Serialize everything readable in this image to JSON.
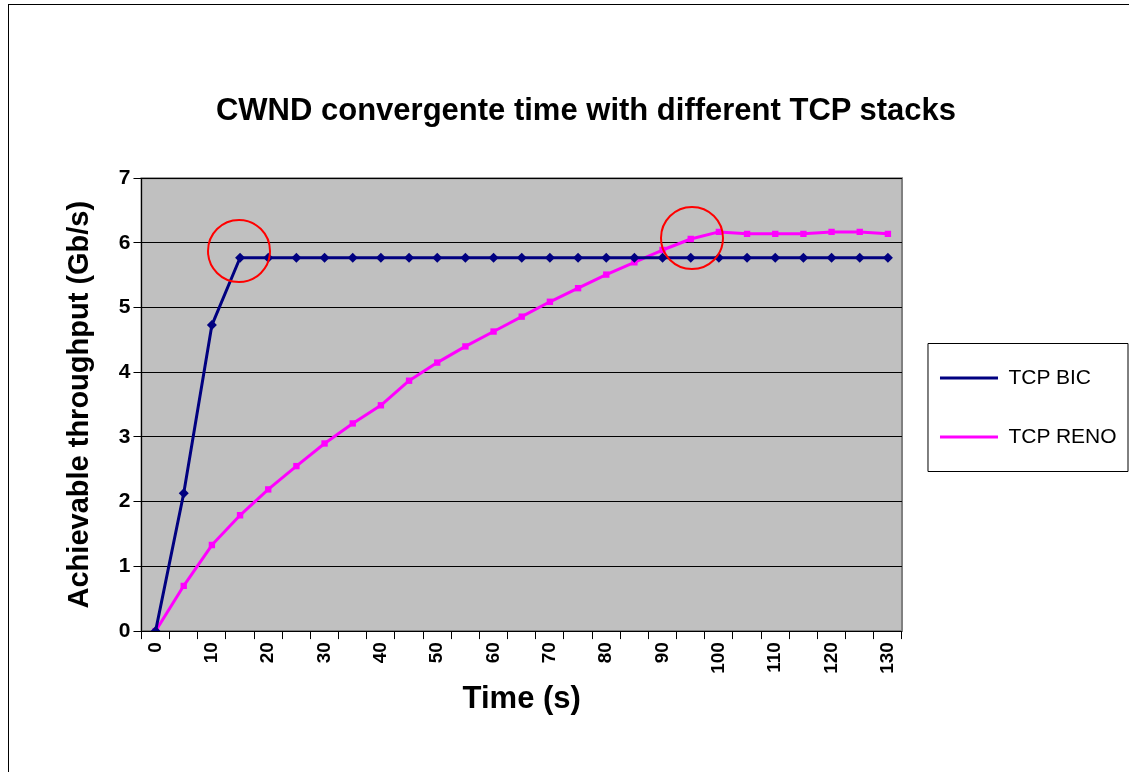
{
  "chart_data": {
    "type": "line",
    "title": "CWND convergente time with different TCP stacks",
    "xlabel": "Time (s)",
    "ylabel": "Achievable throughput (Gb/s)",
    "categories": [
      "0",
      null,
      "10",
      null,
      "20",
      null,
      "30",
      null,
      "40",
      null,
      "50",
      null,
      "60",
      null,
      "70",
      null,
      "80",
      null,
      "90",
      null,
      "100",
      null,
      "110",
      null,
      "120",
      null,
      "130"
    ],
    "series": [
      {
        "name": "TCP BIC",
        "color": "#000080",
        "marker": "diamond",
        "values": [
          0,
          2.13,
          4.73,
          5.77,
          5.77,
          5.77,
          5.77,
          5.77,
          5.77,
          5.77,
          5.77,
          5.77,
          5.77,
          5.77,
          5.77,
          5.77,
          5.77,
          5.77,
          5.77,
          5.77,
          5.77,
          5.77,
          5.77,
          5.77,
          5.77,
          5.77,
          5.77
        ]
      },
      {
        "name": "TCP RENO",
        "color": "#ff00ff",
        "marker": "square",
        "values": [
          0,
          0.7,
          1.33,
          1.79,
          2.19,
          2.55,
          2.9,
          3.21,
          3.49,
          3.87,
          4.15,
          4.4,
          4.63,
          4.86,
          5.09,
          5.3,
          5.51,
          5.7,
          5.89,
          6.06,
          6.17,
          6.14,
          6.14,
          6.14,
          6.17,
          6.17,
          6.14
        ]
      }
    ],
    "ylim": [
      0,
      7
    ],
    "yticks": [
      0,
      1,
      2,
      3,
      4,
      5,
      6,
      7
    ],
    "grid": "y",
    "legend": "right"
  }
}
